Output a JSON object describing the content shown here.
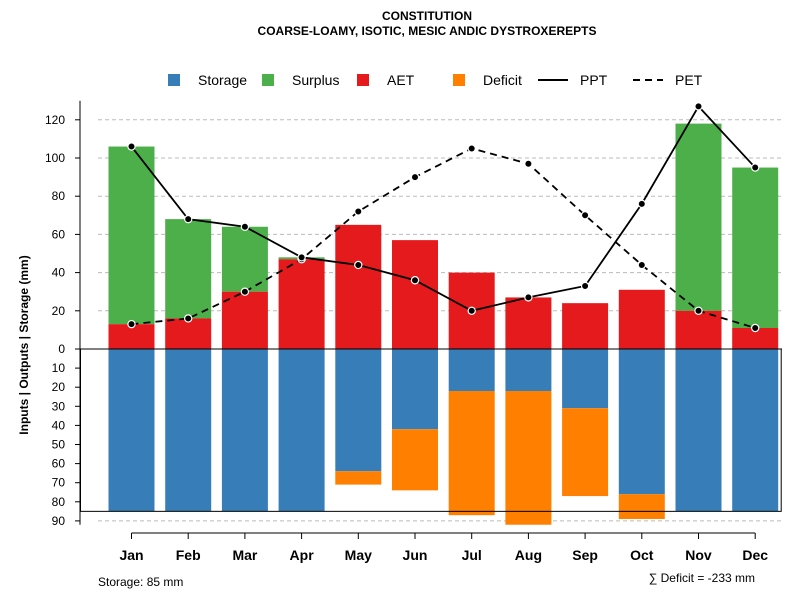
{
  "chart_data": {
    "type": "bar",
    "title": "CONSTITUTION",
    "subtitle": "COARSE-LOAMY, ISOTIC, MESIC ANDIC DYSTROXEREPTS",
    "ylabel": "Inputs | Outputs | Storage    (mm)",
    "categories": [
      "Jan",
      "Feb",
      "Mar",
      "Apr",
      "May",
      "Jun",
      "Jul",
      "Aug",
      "Sep",
      "Oct",
      "Nov",
      "Dec"
    ],
    "upper_ylim": [
      0,
      130
    ],
    "upper_ticks": [
      "0",
      "20",
      "40",
      "60",
      "80",
      "100",
      "120"
    ],
    "lower_ylim": [
      0,
      90
    ],
    "lower_ticks": [
      "10",
      "20",
      "30",
      "40",
      "50",
      "60",
      "70",
      "80",
      "90"
    ],
    "grid": true,
    "legend_position": "top",
    "series": [
      {
        "name": "Storage",
        "color": "#377EB8",
        "values": [
          85,
          85,
          85,
          85,
          64,
          42,
          22,
          22,
          31,
          76,
          85,
          85
        ]
      },
      {
        "name": "Surplus",
        "color": "#4DAF4A",
        "values": [
          93,
          52,
          34,
          1,
          0,
          0,
          0,
          0,
          0,
          0,
          98,
          84
        ]
      },
      {
        "name": "AET",
        "color": "#E41A1C",
        "values": [
          13,
          16,
          30,
          47,
          65,
          57,
          40,
          27,
          24,
          31,
          20,
          11
        ]
      },
      {
        "name": "Deficit",
        "color": "#FF7F00",
        "values": [
          0,
          0,
          0,
          0,
          7,
          32,
          65,
          70,
          46,
          13,
          0,
          0
        ]
      },
      {
        "name": "PPT",
        "color": "#000000",
        "values": [
          106,
          68,
          64,
          48,
          44,
          36,
          20,
          27,
          33,
          76,
          127,
          95
        ]
      },
      {
        "name": "PET",
        "color": "#000000",
        "values": [
          13,
          16,
          30,
          47,
          72,
          90,
          105,
          97,
          70,
          44,
          20,
          11
        ]
      }
    ],
    "storage_capacity": 85,
    "storage_note": "Storage: 85 mm",
    "deficit_note": "∑ Deficit = -233 mm"
  }
}
